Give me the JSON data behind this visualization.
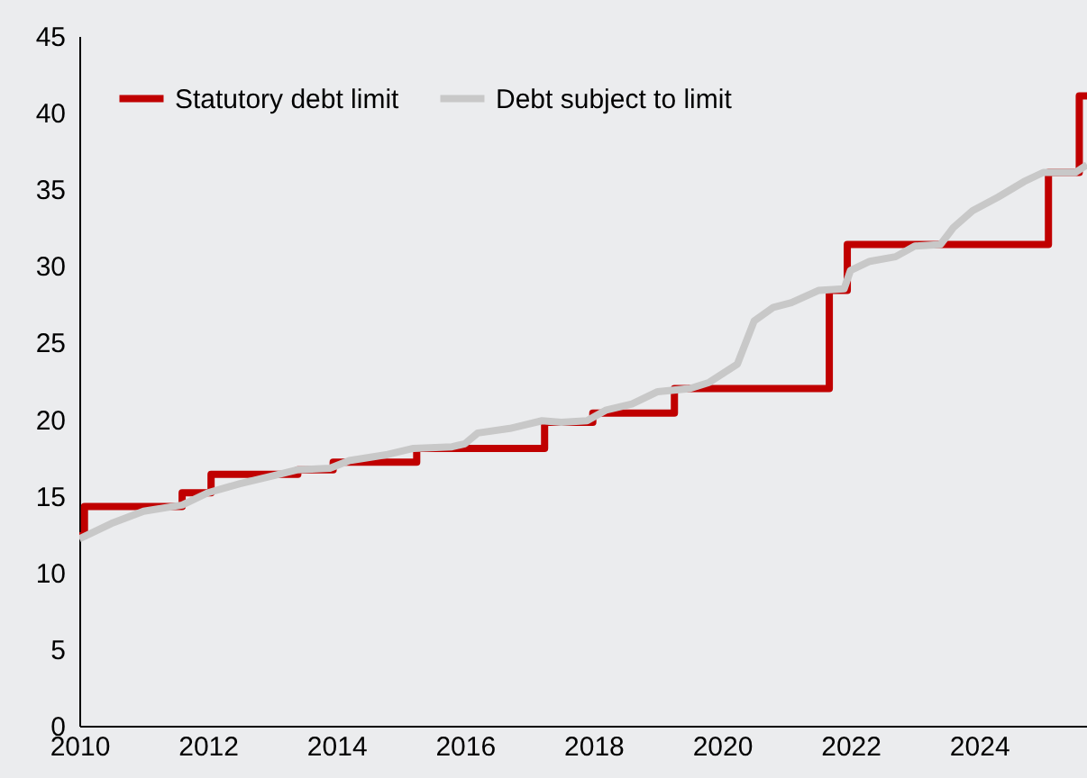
{
  "chart_data": {
    "type": "line",
    "legend": "top left",
    "xlim": [
      2010,
      2025.68
    ],
    "xticks": [
      2010,
      2012,
      2014,
      2016,
      2018,
      2020,
      2022,
      2024
    ],
    "ylim": [
      0,
      45
    ],
    "yticks": [
      0,
      5,
      10,
      15,
      20,
      25,
      30,
      35,
      40,
      45
    ],
    "grid": false,
    "series": [
      {
        "name": "Statutory debt limit",
        "type": "step",
        "color": "#c00000",
        "x": [
          2010.0,
          2010.08,
          2011.6,
          2012.05,
          2013.4,
          2013.95,
          2015.25,
          2017.24,
          2017.99,
          2019.26,
          2021.67,
          2021.95,
          2025.08,
          2025.56,
          2025.68
        ],
        "values": [
          12.4,
          14.3,
          15.2,
          16.4,
          16.7,
          17.2,
          18.1,
          19.8,
          20.4,
          22.0,
          28.4,
          31.4,
          36.1,
          41.1,
          41.1
        ]
      },
      {
        "name": "Debt subject to limit",
        "type": "line",
        "color": "#c8c8c8",
        "x": [
          2010.0,
          2010.5,
          2011.0,
          2011.6,
          2012.0,
          2012.5,
          2013.0,
          2013.4,
          2013.9,
          2014.2,
          2014.8,
          2015.2,
          2015.8,
          2016.0,
          2016.2,
          2016.7,
          2017.2,
          2017.5,
          2017.9,
          2018.2,
          2018.6,
          2019.0,
          2019.5,
          2019.8,
          2020.24,
          2020.5,
          2020.8,
          2021.08,
          2021.5,
          2021.9,
          2022.0,
          2022.3,
          2022.7,
          2023.0,
          2023.4,
          2023.6,
          2023.9,
          2024.3,
          2024.7,
          2025.0,
          2025.5,
          2025.68
        ],
        "values": [
          12.2,
          13.2,
          14.0,
          14.4,
          15.2,
          15.8,
          16.3,
          16.7,
          16.8,
          17.3,
          17.7,
          18.1,
          18.2,
          18.4,
          19.1,
          19.4,
          19.9,
          19.8,
          19.9,
          20.6,
          21.0,
          21.8,
          22.0,
          22.4,
          23.6,
          26.4,
          27.3,
          27.6,
          28.4,
          28.5,
          29.7,
          30.3,
          30.6,
          31.3,
          31.4,
          32.5,
          33.6,
          34.5,
          35.5,
          36.1,
          36.1,
          36.6
        ]
      }
    ]
  }
}
